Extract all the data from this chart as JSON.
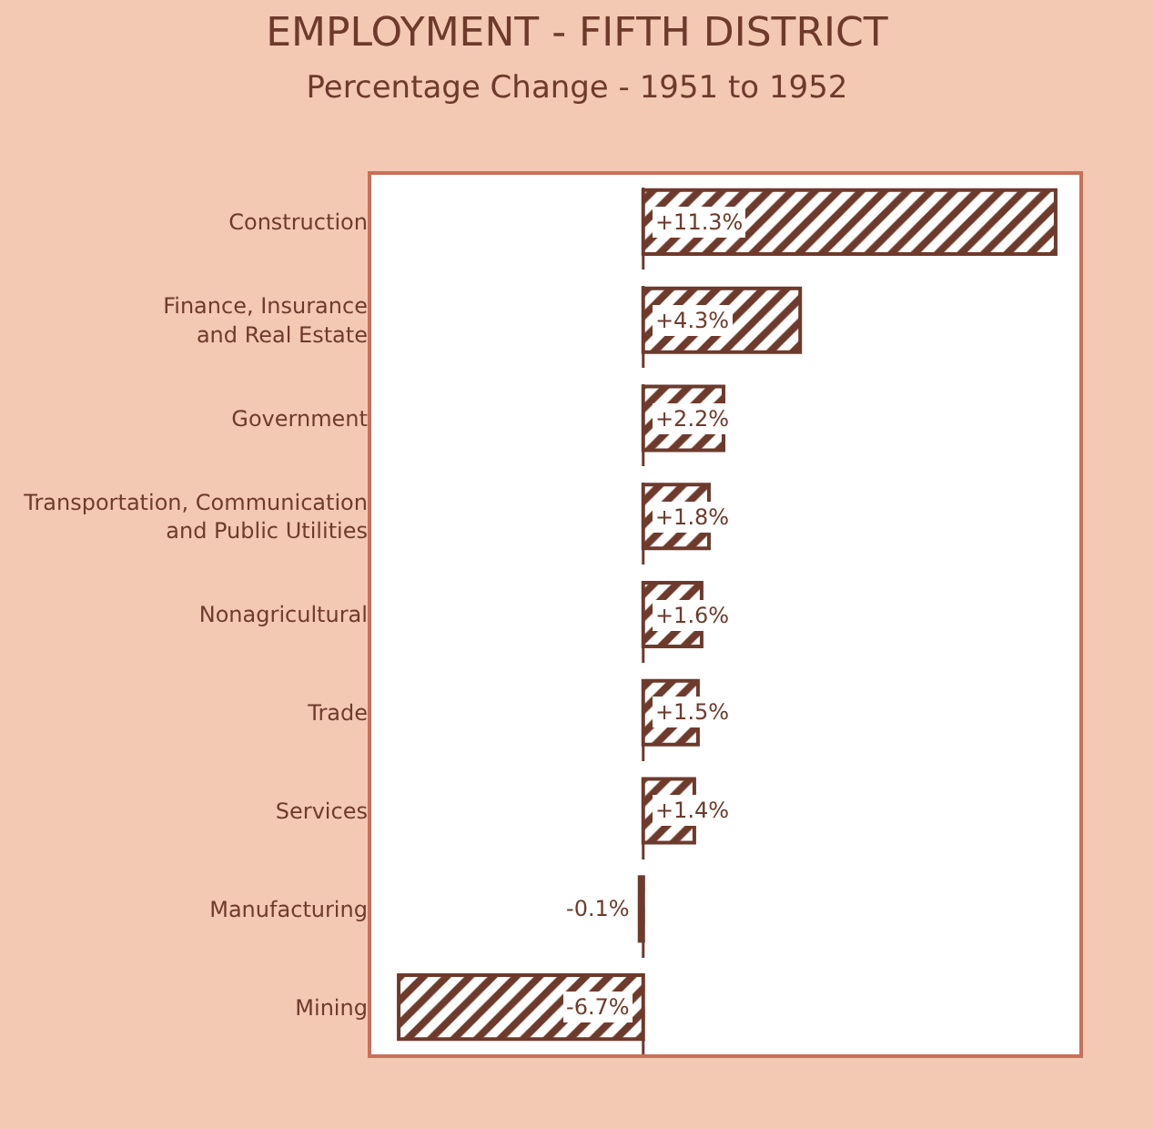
{
  "chart_data": {
    "type": "bar",
    "orientation": "horizontal",
    "title": "EMPLOYMENT - FIFTH DISTRICT",
    "subtitle": "Percentage Change - 1951 to 1952",
    "categories": [
      "Construction",
      "Finance, Insurance\nand Real Estate",
      "Government",
      "Transportation, Communication\nand Public Utilities",
      "Nonagricultural",
      "Trade",
      "Services",
      "Manufacturing",
      "Mining"
    ],
    "values": [
      11.3,
      4.3,
      2.2,
      1.8,
      1.6,
      1.5,
      1.4,
      -0.1,
      -6.7
    ],
    "value_labels": [
      "+11.3%",
      "+4.3%",
      "+2.2%",
      "+1.8%",
      "+1.6%",
      "+1.5%",
      "+1.4%",
      "-0.1%",
      "-6.7%"
    ],
    "color": "#6e3a2c",
    "xlim": [
      -7.5,
      12
    ],
    "tick_labels": "y",
    "ref_lines": [
      {
        "axis": "x",
        "value": 0,
        "line_style": "dashed",
        "color": "#6e3a2c"
      }
    ]
  }
}
